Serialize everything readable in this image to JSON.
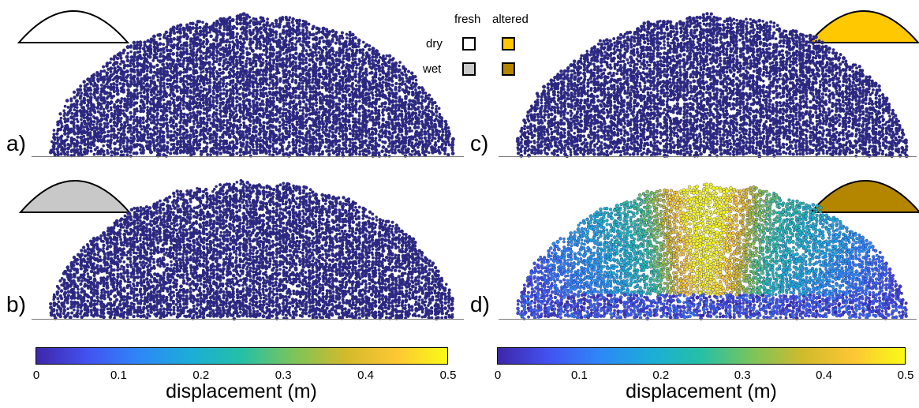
{
  "panels": [
    {
      "letter": "a)",
      "state": "dry",
      "material": "fresh",
      "icon_fill": "#ffffff"
    },
    {
      "letter": "b)",
      "state": "wet",
      "material": "fresh",
      "icon_fill": "#c8c8c8"
    },
    {
      "letter": "c)",
      "state": "dry",
      "material": "altered",
      "icon_fill": "#ffc800"
    },
    {
      "letter": "d)",
      "state": "wet",
      "material": "altered",
      "icon_fill": "#b48600"
    }
  ],
  "legend": {
    "col_fresh": "fresh",
    "col_altered": "altered",
    "row_dry": "dry",
    "row_wet": "wet",
    "colors": {
      "dry_fresh": "#ffffff",
      "dry_altered": "#ffc800",
      "wet_fresh": "#c8c8c8",
      "wet_altered": "#b48600"
    }
  },
  "colorbar": {
    "title": "displacement (m)",
    "ticks": [
      "0",
      "0.1",
      "0.2",
      "0.3",
      "0.4",
      "0.5"
    ],
    "min": 0,
    "max": 0.5,
    "colormap": [
      "#3e26a8",
      "#4352f0",
      "#2e87f8",
      "#1cadd8",
      "#25c0a6",
      "#7ac55a",
      "#d1ba2c",
      "#fdc734",
      "#f9fb14"
    ]
  }
}
